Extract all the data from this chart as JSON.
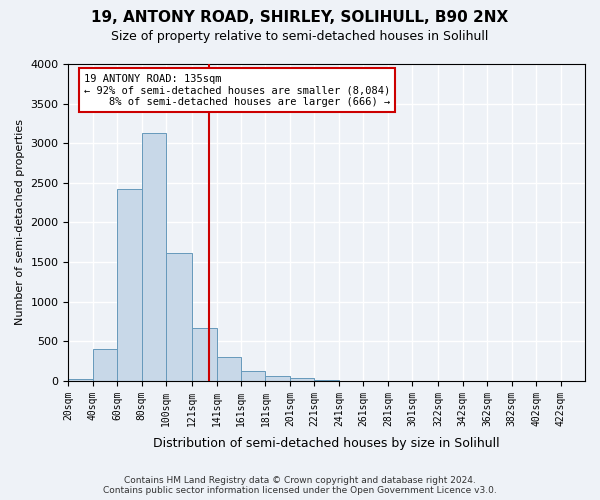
{
  "title_line1": "19, ANTONY ROAD, SHIRLEY, SOLIHULL, B90 2NX",
  "title_line2": "Size of property relative to semi-detached houses in Solihull",
  "xlabel": "Distribution of semi-detached houses by size in Solihull",
  "ylabel": "Number of semi-detached properties",
  "footnote": "Contains HM Land Registry data © Crown copyright and database right 2024.\nContains public sector information licensed under the Open Government Licence v3.0.",
  "bin_labels": [
    "20sqm",
    "40sqm",
    "60sqm",
    "80sqm",
    "100sqm",
    "121sqm",
    "141sqm",
    "161sqm",
    "181sqm",
    "201sqm",
    "221sqm",
    "241sqm",
    "261sqm",
    "281sqm",
    "301sqm",
    "322sqm",
    "342sqm",
    "362sqm",
    "382sqm",
    "402sqm",
    "422sqm"
  ],
  "bar_values": [
    20,
    400,
    2420,
    3130,
    1620,
    670,
    300,
    130,
    60,
    40,
    15,
    0,
    0,
    0,
    0,
    0,
    0,
    0,
    0,
    0,
    0
  ],
  "bar_color": "#c8d8e8",
  "bar_edge_color": "#6699bb",
  "property_line_x": 135,
  "annotation_text_line1": "19 ANTONY ROAD: 135sqm",
  "annotation_text_line2": "← 92% of semi-detached houses are smaller (8,084)",
  "annotation_text_line3": "    8% of semi-detached houses are larger (666) →",
  "vline_color": "#cc0000",
  "annotation_box_color": "#ffffff",
  "annotation_box_edge": "#cc0000",
  "ylim": [
    0,
    4000
  ],
  "background_color": "#eef2f7",
  "grid_color": "#ffffff",
  "bin_left_edges": [
    20,
    40,
    60,
    80,
    100,
    121,
    141,
    161,
    181,
    201,
    221,
    241,
    261,
    281,
    301,
    322,
    342,
    362,
    382,
    402,
    422
  ],
  "xlim_min": 20,
  "xlim_max": 442
}
